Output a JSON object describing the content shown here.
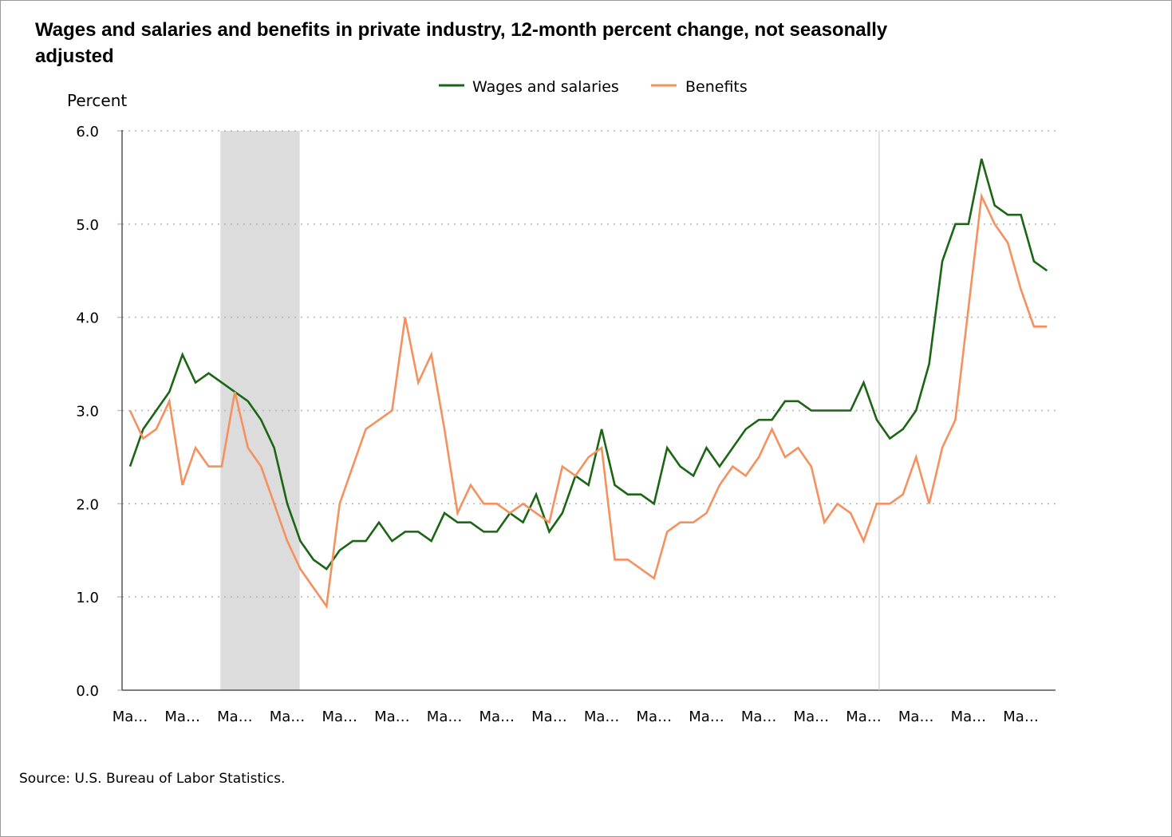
{
  "chart_data": {
    "type": "line",
    "title": "Wages and salaries and benefits in private industry, 12-month percent change, not seasonally adjusted",
    "ylabel": "Percent",
    "xlabel": "",
    "ylim": [
      0,
      6
    ],
    "y_ticks": [
      "0.0",
      "1.0",
      "2.0",
      "3.0",
      "4.0",
      "5.0",
      "6.0"
    ],
    "x_tick_labels": [
      "Ma…",
      "Ma…",
      "Ma…",
      "Ma…",
      "Ma…",
      "Ma…",
      "Ma…",
      "Ma…",
      "Ma…",
      "Ma…",
      "Ma…",
      "Ma…",
      "Ma…",
      "Ma…",
      "Ma…",
      "Ma…",
      "Ma…",
      "Ma…"
    ],
    "x_tick_every": 4,
    "grid": "horizontal dotted",
    "legend_position": "top-center",
    "shaded_period": {
      "start_index": 7,
      "end_index": 13,
      "color": "#dcdcdc"
    },
    "reference_line_index": 57,
    "series": [
      {
        "name": "Wages and salaries",
        "color": "#1a6614",
        "values": [
          2.4,
          2.8,
          3.0,
          3.2,
          3.6,
          3.3,
          3.4,
          3.3,
          3.2,
          3.1,
          2.9,
          2.6,
          2.0,
          1.6,
          1.4,
          1.3,
          1.5,
          1.6,
          1.6,
          1.8,
          1.6,
          1.7,
          1.7,
          1.6,
          1.9,
          1.8,
          1.8,
          1.7,
          1.7,
          1.9,
          1.8,
          2.1,
          1.7,
          1.9,
          2.3,
          2.2,
          2.8,
          2.2,
          2.1,
          2.1,
          2.0,
          2.6,
          2.4,
          2.3,
          2.6,
          2.4,
          2.6,
          2.8,
          2.9,
          2.9,
          3.1,
          3.1,
          3.0,
          3.0,
          3.0,
          3.0,
          3.3,
          2.9,
          2.7,
          2.8,
          3.0,
          3.5,
          4.6,
          5.0,
          5.0,
          5.7,
          5.2,
          5.1,
          5.1,
          4.6,
          4.5
        ]
      },
      {
        "name": "Benefits",
        "color": "#f4915e",
        "values": [
          3.0,
          2.7,
          2.8,
          3.1,
          2.2,
          2.6,
          2.4,
          2.4,
          3.2,
          2.6,
          2.4,
          2.0,
          1.6,
          1.3,
          1.1,
          0.9,
          2.0,
          2.4,
          2.8,
          2.9,
          3.0,
          4.0,
          3.3,
          3.6,
          2.8,
          1.9,
          2.2,
          2.0,
          2.0,
          1.9,
          2.0,
          1.9,
          1.8,
          2.4,
          2.3,
          2.5,
          2.6,
          1.4,
          1.4,
          1.3,
          1.2,
          1.7,
          1.8,
          1.8,
          1.9,
          2.2,
          2.4,
          2.3,
          2.5,
          2.8,
          2.5,
          2.6,
          2.4,
          1.8,
          2.0,
          1.9,
          1.6,
          2.0,
          2.0,
          2.1,
          2.5,
          2.0,
          2.6,
          2.9,
          4.1,
          5.3,
          5.0,
          4.8,
          4.3,
          3.9,
          3.9
        ]
      }
    ]
  },
  "source_note": "Source: U.S. Bureau of Labor Statistics."
}
